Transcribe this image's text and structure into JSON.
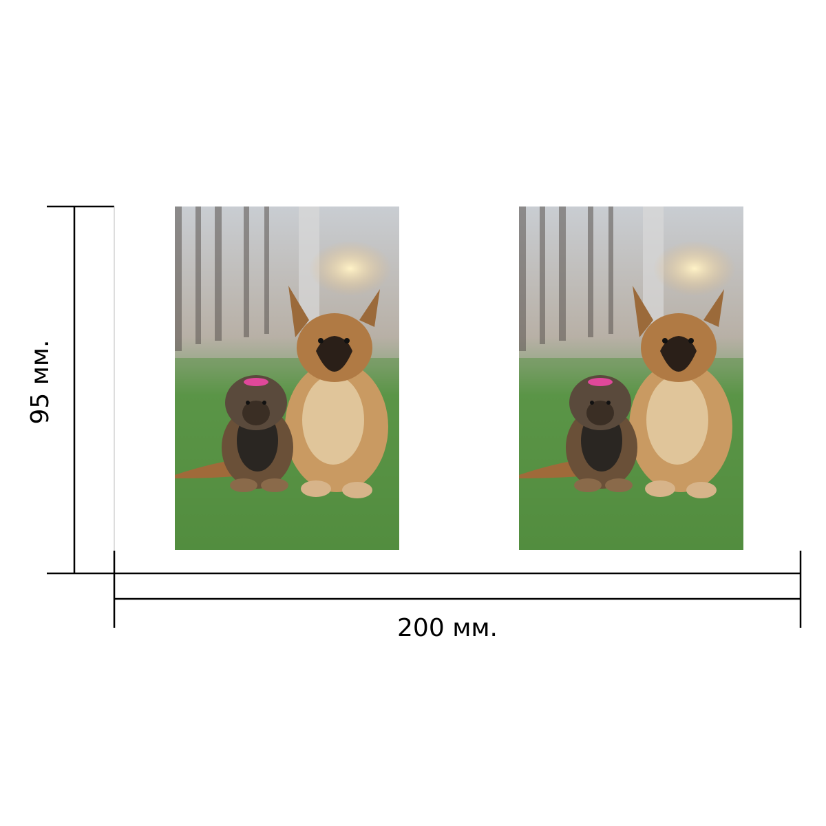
{
  "dimensions": {
    "height": {
      "label": "95 мм."
    },
    "width": {
      "label": "200 мм."
    }
  }
}
